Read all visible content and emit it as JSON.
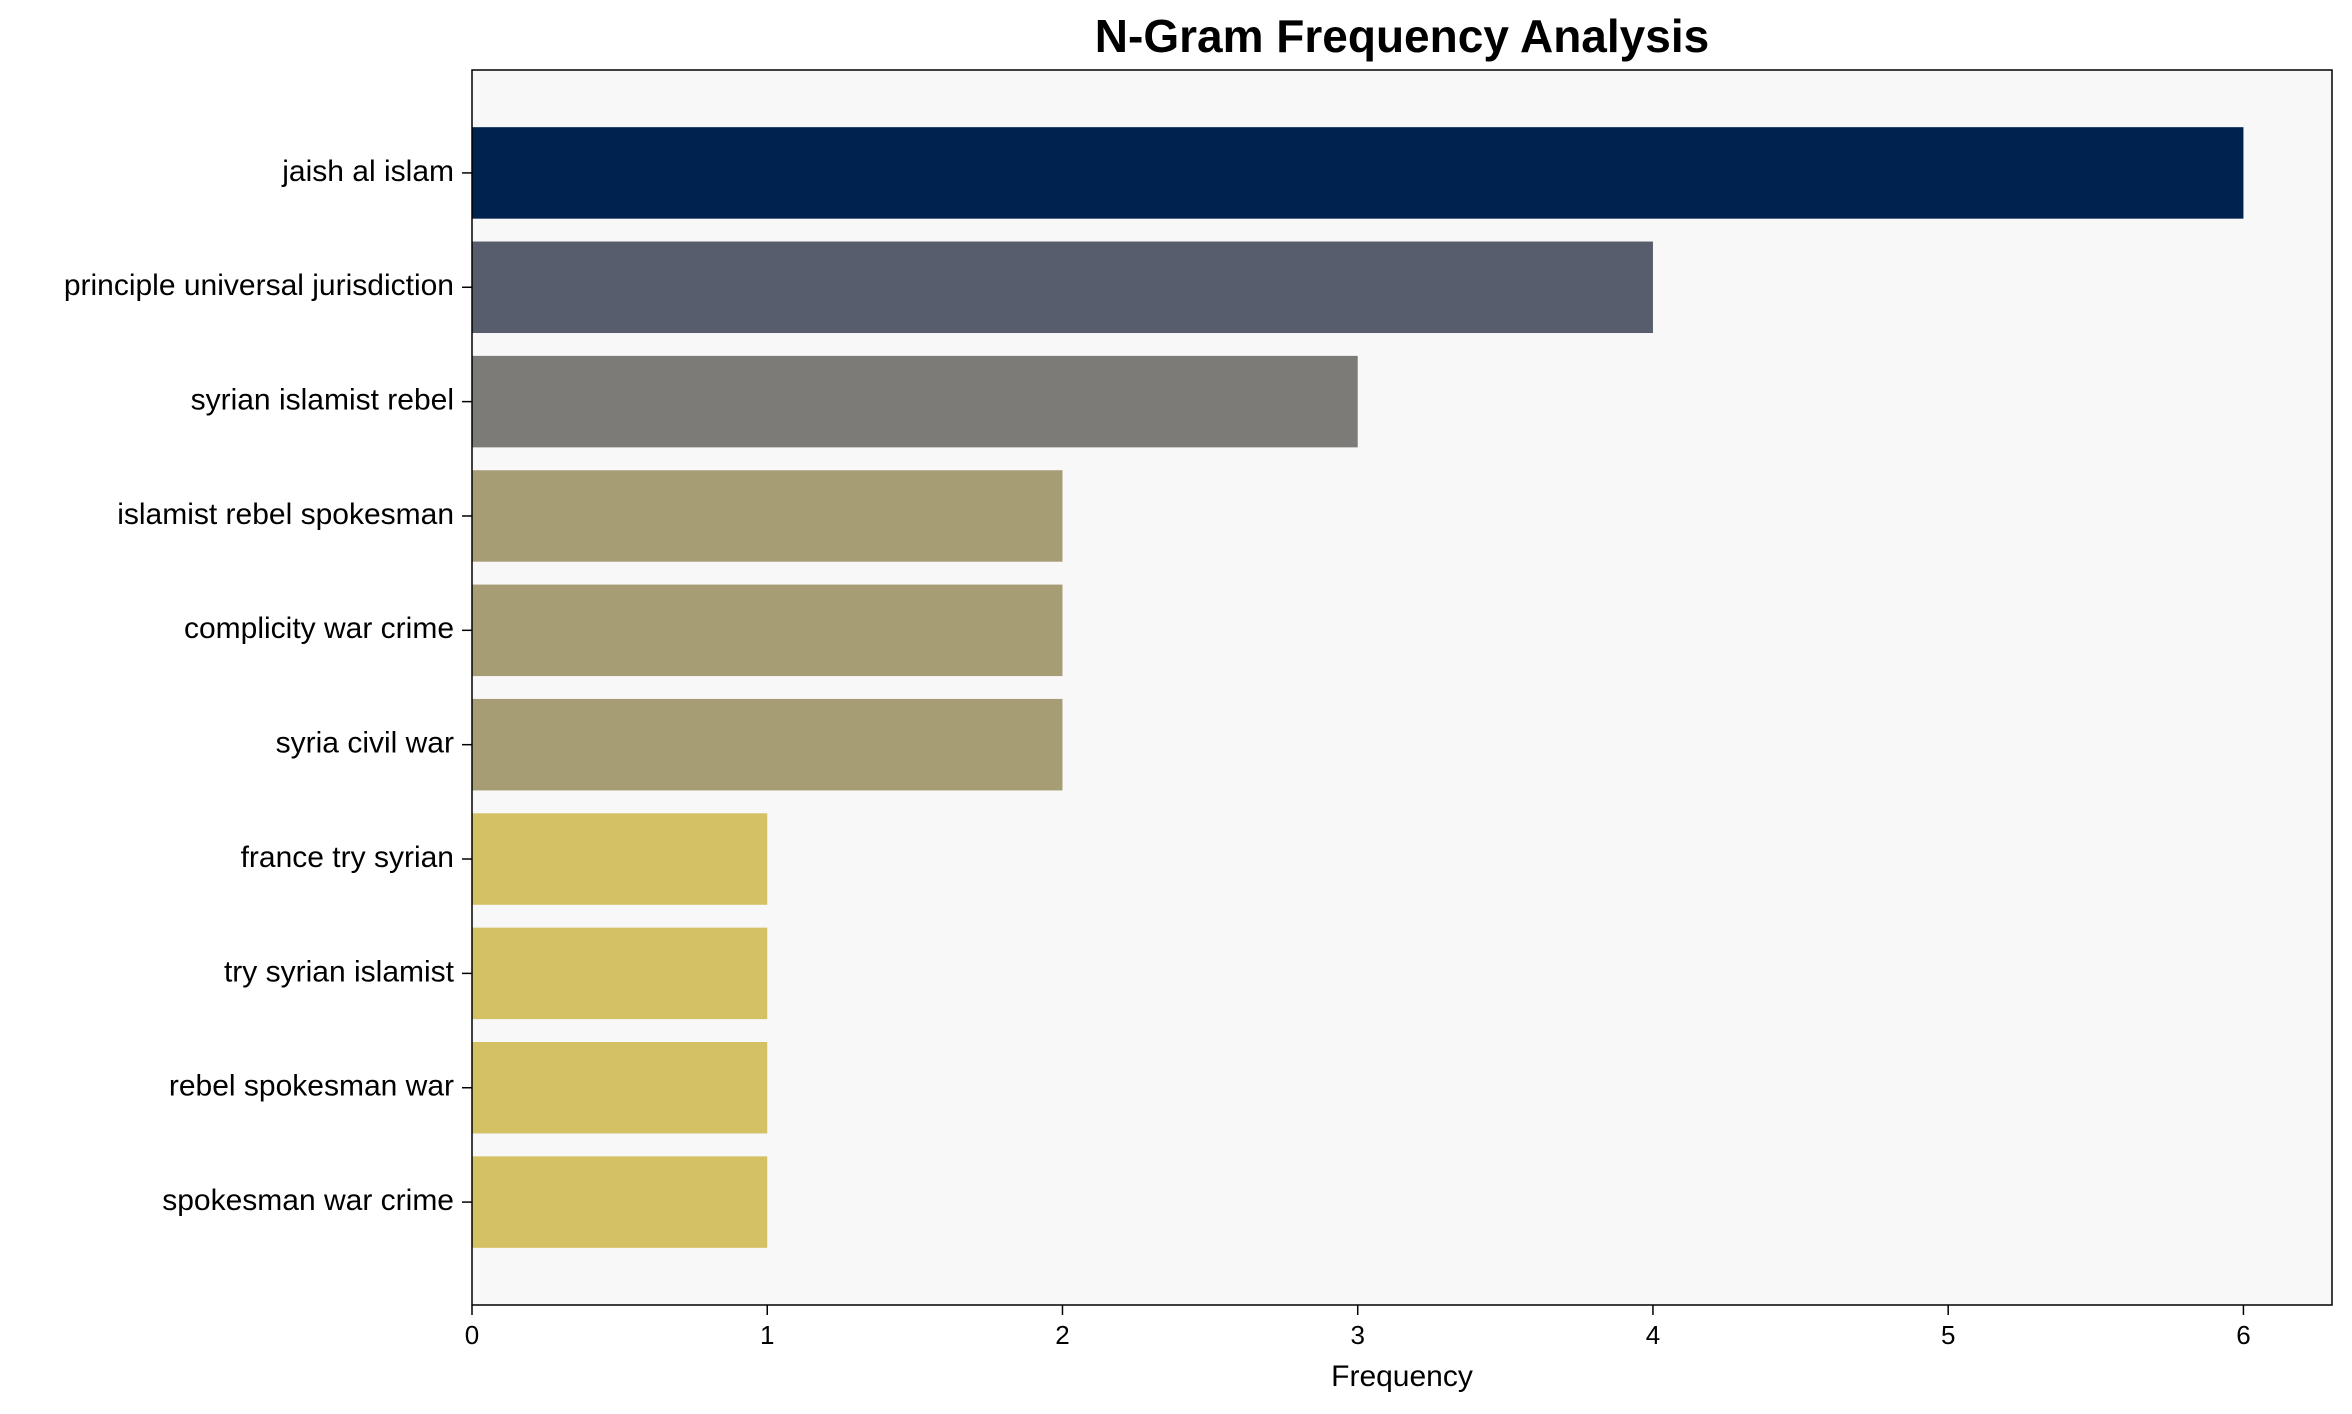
{
  "chart_data": {
    "type": "barh",
    "title": "N-Gram Frequency Analysis",
    "xlabel": "Frequency",
    "categories": [
      "jaish al islam",
      "principle universal jurisdiction",
      "syrian islamist rebel",
      "islamist rebel spokesman",
      "complicity war crime",
      "syria civil war",
      "france try syrian",
      "try syrian islamist",
      "rebel spokesman war",
      "spokesman war crime"
    ],
    "values": [
      6,
      4,
      3,
      2,
      2,
      2,
      1,
      1,
      1,
      1
    ],
    "colors": [
      "#00224e",
      "#575d6d",
      "#7c7b78",
      "#a69d75",
      "#a69d75",
      "#a69d75",
      "#d3c164",
      "#d3c164",
      "#d3c164",
      "#d3c164"
    ],
    "xlim": [
      0,
      6.3
    ],
    "xticks": [
      0,
      1,
      2,
      3,
      4,
      5,
      6
    ],
    "grid": false
  }
}
